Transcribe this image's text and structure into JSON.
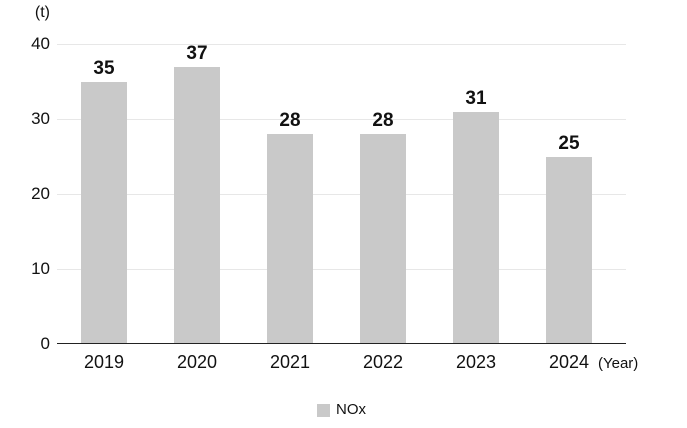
{
  "chart_data": {
    "type": "bar",
    "title": "",
    "y_unit_label": "(t)",
    "x_unit_label": "(Year)",
    "categories": [
      "2019",
      "2020",
      "2021",
      "2022",
      "2023",
      "2024"
    ],
    "series": [
      {
        "name": "NOx",
        "values": [
          35,
          37,
          28,
          28,
          31,
          25
        ]
      }
    ],
    "ylim": [
      0,
      40
    ],
    "yticks": [
      0,
      10,
      20,
      30,
      40
    ],
    "grid": true,
    "legend_position": "bottom",
    "colors": {
      "bar": "#c9c9c9",
      "gridline": "#e7e7e7",
      "axis": "#222222",
      "text": "#111111"
    }
  }
}
